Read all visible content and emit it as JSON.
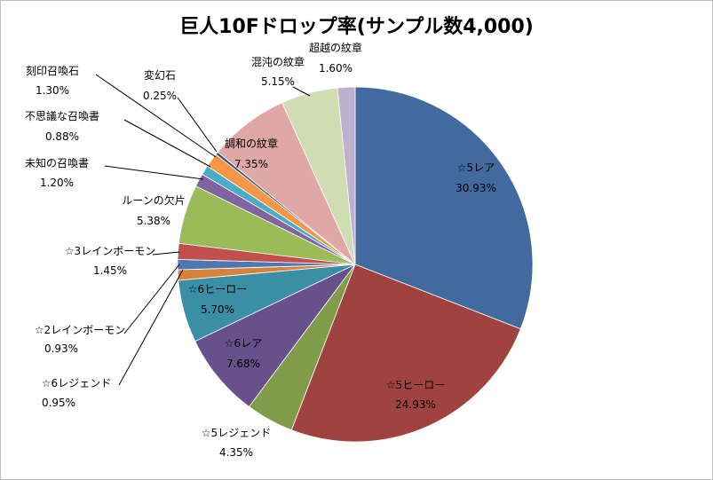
{
  "chart_data": {
    "type": "pie",
    "title": "巨人10Fドロップ率(サンプル数4,000)",
    "start_angle_deg": 0,
    "direction": "clockwise",
    "slices": [
      {
        "name": "☆5レア",
        "value": 30.93,
        "pct_label": "30.93%",
        "color": "#426A9E"
      },
      {
        "name": "☆5ヒーロー",
        "value": 24.93,
        "pct_label": "24.93%",
        "color": "#A04340"
      },
      {
        "name": "☆5レジェンド",
        "value": 4.35,
        "pct_label": "4.35%",
        "color": "#809B4A"
      },
      {
        "name": "☆6レア",
        "value": 7.68,
        "pct_label": "7.68%",
        "color": "#68508A"
      },
      {
        "name": "☆6ヒーロー",
        "value": 5.7,
        "pct_label": "5.70%",
        "color": "#3B8FA5"
      },
      {
        "name": "☆6レジェンド",
        "value": 0.95,
        "pct_label": "0.95%",
        "color": "#D6823C"
      },
      {
        "name": "☆2レインボーモン",
        "value": 0.93,
        "pct_label": "0.93%",
        "color": "#4E79B0"
      },
      {
        "name": "☆3レインボーモン",
        "value": 1.45,
        "pct_label": "1.45%",
        "color": "#C0504D"
      },
      {
        "name": "ルーンの欠片",
        "value": 5.38,
        "pct_label": "5.38%",
        "color": "#9BBB59"
      },
      {
        "name": "未知の召喚書",
        "value": 1.2,
        "pct_label": "1.20%",
        "color": "#8064A2"
      },
      {
        "name": "不思議な召喚書",
        "value": 0.88,
        "pct_label": "0.88%",
        "color": "#4BACC6"
      },
      {
        "name": "刻印召喚石",
        "value": 1.3,
        "pct_label": "1.30%",
        "color": "#F79646"
      },
      {
        "name": "変幻石",
        "value": 0.25,
        "pct_label": "0.25%",
        "color": "#2C4D75"
      },
      {
        "name": "調和の紋章",
        "value": 7.35,
        "pct_label": "7.35%",
        "color": "#DFA7A6"
      },
      {
        "name": "混沌の紋章",
        "value": 5.15,
        "pct_label": "5.15%",
        "color": "#D0DDB3"
      },
      {
        "name": "超越の紋章",
        "value": 1.6,
        "pct_label": "1.60%",
        "color": "#BDB1CF"
      }
    ]
  }
}
